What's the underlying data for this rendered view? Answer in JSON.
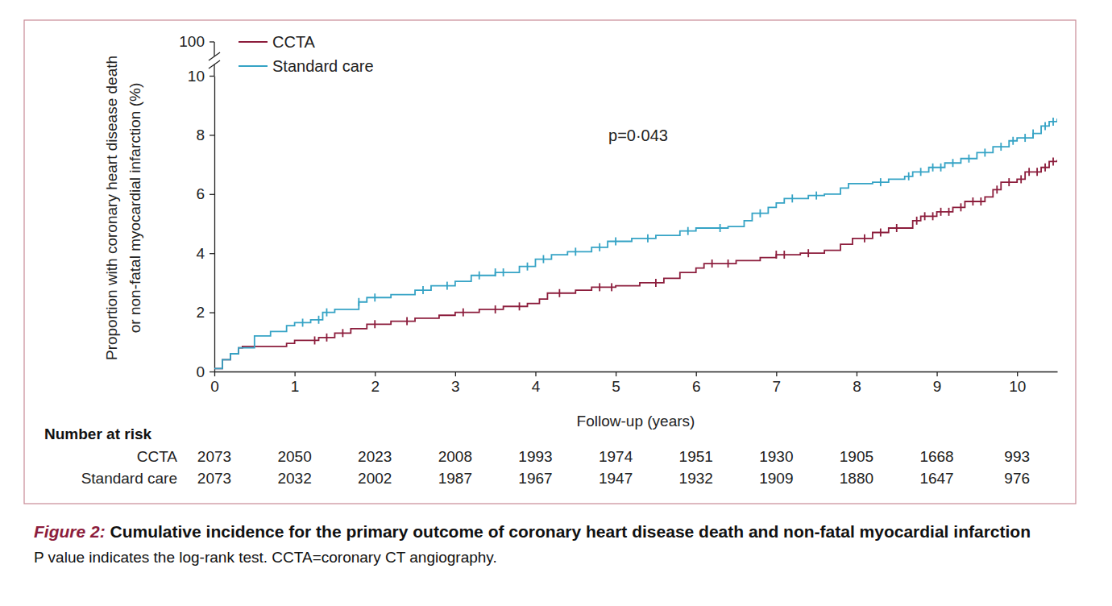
{
  "chart_data": {
    "type": "line",
    "figure_label": "Figure 2:",
    "title": "Cumulative incidence for the primary outcome of coronary heart disease death and non-fatal myocardial infarction",
    "note": "P value indicates the log-rank test. CCTA=coronary CT angiography.",
    "xlabel": "Follow-up (years)",
    "ylabel": [
      "Proportion with coronary heart disease death",
      "or non-fatal myocardial infarction (%)"
    ],
    "annotation": "p=0·043",
    "xlim": [
      0,
      10.5
    ],
    "xticks": [
      0,
      1,
      2,
      3,
      4,
      5,
      6,
      7,
      8,
      9,
      10
    ],
    "ylim": [
      0,
      10
    ],
    "yticks": [
      0,
      2,
      4,
      6,
      8,
      10
    ],
    "ybreak": 100,
    "legend": "top-left",
    "line_style": "step",
    "marker": "censor",
    "series": [
      {
        "name": "CCTA",
        "color": "#8c1d3c",
        "x": [
          0,
          0.1,
          0.2,
          0.3,
          0.35,
          0.9,
          1.0,
          1.3,
          1.5,
          1.7,
          1.9,
          2.2,
          2.5,
          2.8,
          3.0,
          3.3,
          3.6,
          3.9,
          4.05,
          4.15,
          4.5,
          4.7,
          5.0,
          5.3,
          5.6,
          5.8,
          6.0,
          6.1,
          6.5,
          6.8,
          7.0,
          7.3,
          7.6,
          7.8,
          7.95,
          8.2,
          8.4,
          8.7,
          8.8,
          9.0,
          9.2,
          9.35,
          9.6,
          9.7,
          9.8,
          10.0,
          10.1,
          10.3,
          10.4,
          10.5
        ],
        "values": [
          0.1,
          0.4,
          0.6,
          0.8,
          0.85,
          0.95,
          1.05,
          1.15,
          1.3,
          1.45,
          1.6,
          1.7,
          1.8,
          1.9,
          2.0,
          2.1,
          2.2,
          2.3,
          2.45,
          2.65,
          2.75,
          2.85,
          2.9,
          3.0,
          3.15,
          3.35,
          3.5,
          3.65,
          3.75,
          3.85,
          3.95,
          4.0,
          4.1,
          4.3,
          4.5,
          4.7,
          4.85,
          5.1,
          5.25,
          5.4,
          5.55,
          5.75,
          5.9,
          6.15,
          6.4,
          6.5,
          6.75,
          6.9,
          7.1,
          7.15
        ],
        "censored": [
          1.25,
          1.4,
          1.6,
          2.0,
          2.4,
          3.1,
          3.5,
          3.8,
          4.3,
          4.8,
          4.95,
          5.5,
          6.2,
          6.4,
          7.0,
          7.1,
          7.4,
          8.1,
          8.3,
          8.5,
          8.75,
          8.85,
          8.95,
          9.05,
          9.15,
          9.3,
          9.45,
          9.55,
          9.75,
          9.9,
          10.05,
          10.15,
          10.25,
          10.35,
          10.45
        ]
      },
      {
        "name": "Standard care",
        "color": "#35a3c5",
        "x": [
          0,
          0.1,
          0.2,
          0.3,
          0.5,
          0.7,
          0.9,
          1.0,
          1.2,
          1.35,
          1.5,
          1.8,
          1.9,
          2.2,
          2.5,
          2.7,
          3.0,
          3.2,
          3.5,
          3.8,
          4.0,
          4.2,
          4.4,
          4.7,
          4.9,
          5.2,
          5.5,
          5.8,
          6.0,
          6.4,
          6.6,
          6.7,
          6.9,
          7.0,
          7.1,
          7.4,
          7.6,
          7.8,
          7.9,
          8.2,
          8.4,
          8.6,
          8.7,
          8.9,
          9.1,
          9.3,
          9.5,
          9.7,
          9.9,
          10.0,
          10.2,
          10.3,
          10.4,
          10.5
        ],
        "values": [
          0.1,
          0.4,
          0.6,
          0.8,
          1.2,
          1.35,
          1.55,
          1.65,
          1.75,
          2.0,
          2.1,
          2.35,
          2.5,
          2.6,
          2.75,
          2.9,
          3.05,
          3.25,
          3.35,
          3.55,
          3.8,
          3.95,
          4.05,
          4.2,
          4.4,
          4.5,
          4.6,
          4.75,
          4.85,
          4.9,
          5.1,
          5.35,
          5.55,
          5.7,
          5.85,
          5.95,
          6.0,
          6.2,
          6.35,
          6.4,
          6.5,
          6.6,
          6.75,
          6.9,
          7.05,
          7.2,
          7.4,
          7.6,
          7.8,
          7.9,
          8.05,
          8.3,
          8.45,
          8.55
        ],
        "censored": [
          1.1,
          1.3,
          1.4,
          1.8,
          2.0,
          2.6,
          2.9,
          3.3,
          3.5,
          3.6,
          3.9,
          4.1,
          4.5,
          4.8,
          5.0,
          5.4,
          5.9,
          6.3,
          6.8,
          7.2,
          7.5,
          8.3,
          8.65,
          8.8,
          8.95,
          9.05,
          9.2,
          9.4,
          9.6,
          9.8,
          9.95,
          10.1,
          10.2,
          10.35,
          10.45
        ]
      }
    ],
    "risk_table": {
      "title": "Number at risk",
      "times": [
        0,
        1,
        2,
        3,
        4,
        5,
        6,
        7,
        8,
        9,
        10
      ],
      "rows": [
        {
          "name": "CCTA",
          "values": [
            2073,
            2050,
            2023,
            2008,
            1993,
            1974,
            1951,
            1930,
            1905,
            1668,
            993
          ]
        },
        {
          "name": "Standard care",
          "values": [
            2073,
            2032,
            2002,
            1987,
            1967,
            1947,
            1932,
            1909,
            1880,
            1647,
            976
          ]
        }
      ]
    }
  }
}
